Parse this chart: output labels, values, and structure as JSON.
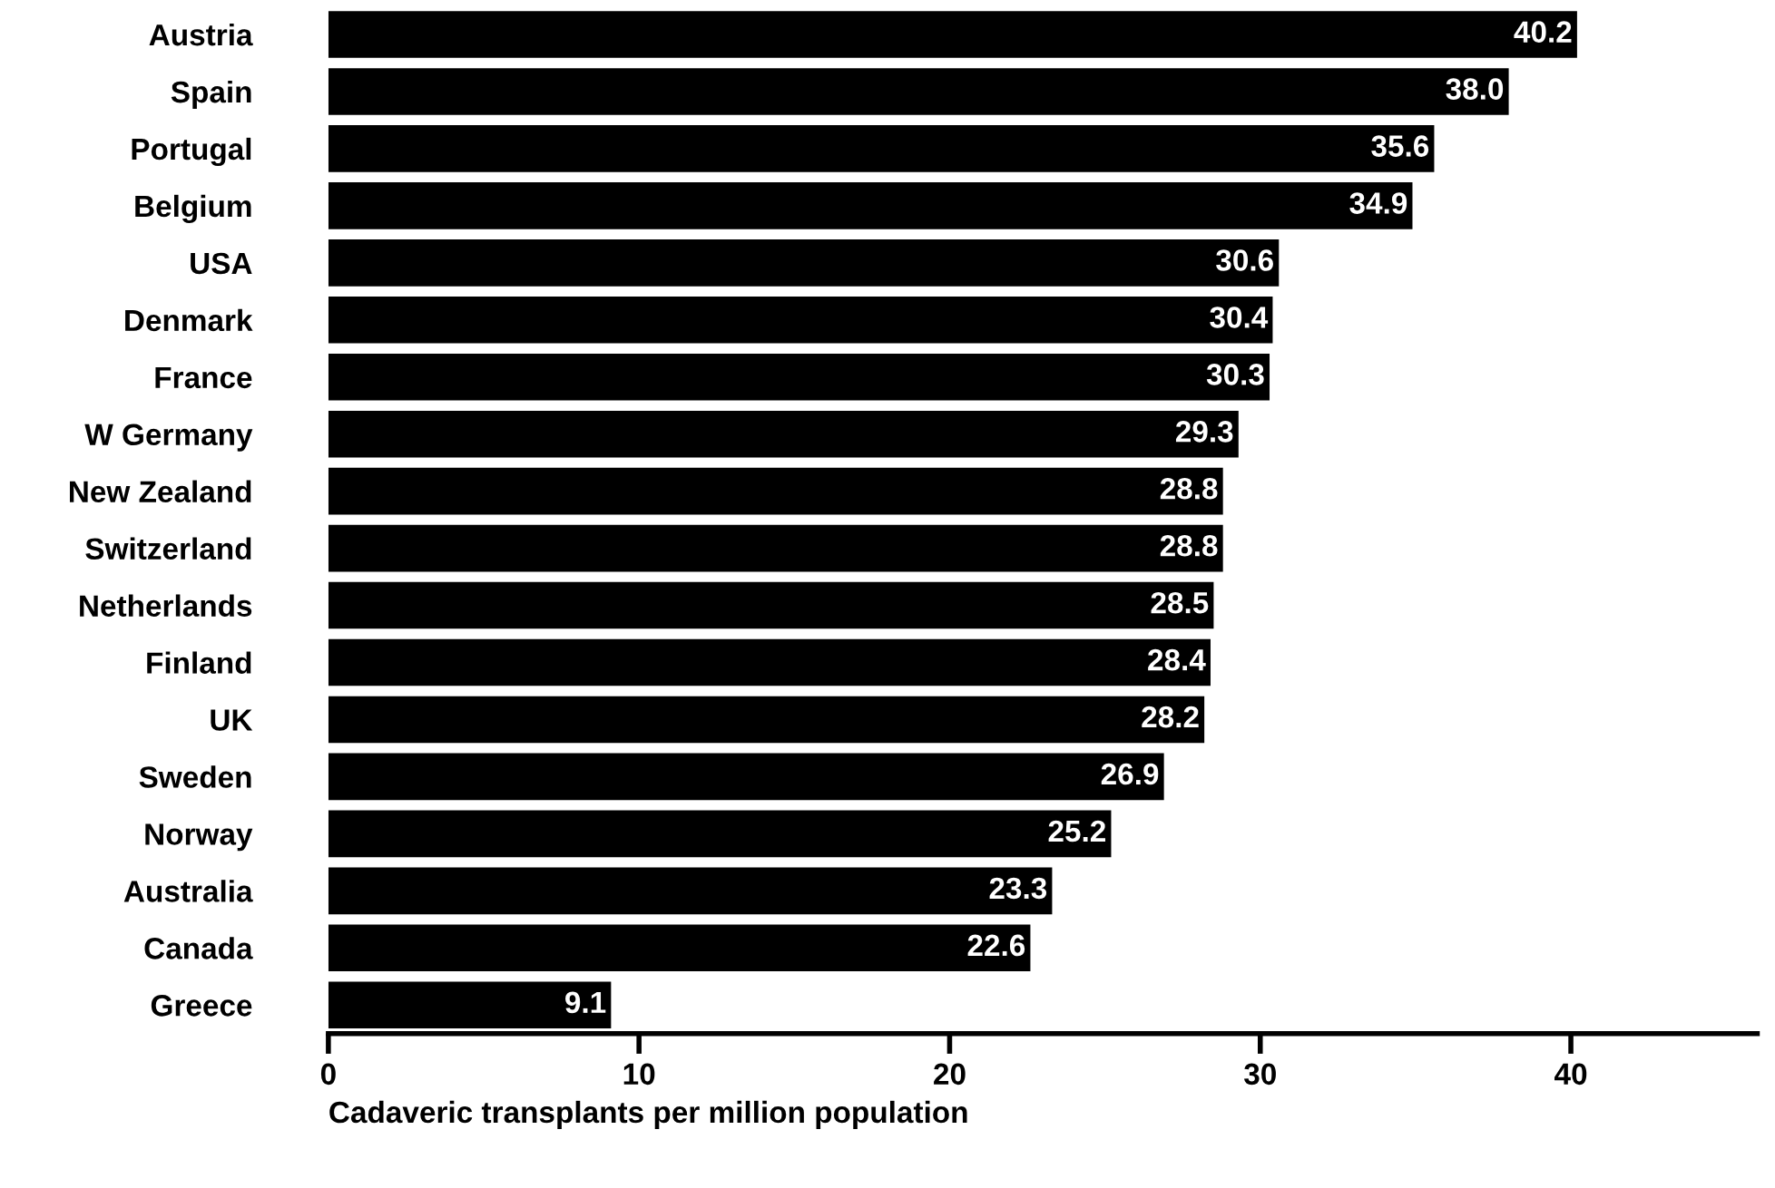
{
  "chart_data": {
    "type": "bar",
    "orientation": "horizontal",
    "xlabel": "Cadaveric transplants per million population",
    "categories": [
      "Austria",
      "Spain",
      "Portugal",
      "Belgium",
      "USA",
      "Denmark",
      "France",
      "W Germany",
      "New Zealand",
      "Switzerland",
      "Netherlands",
      "Finland",
      "UK",
      "Sweden",
      "Norway",
      "Australia",
      "Canada",
      "Greece"
    ],
    "values": [
      40.2,
      38.0,
      35.6,
      34.9,
      30.6,
      30.4,
      30.3,
      29.3,
      28.8,
      28.8,
      28.5,
      28.4,
      28.2,
      26.9,
      25.2,
      23.3,
      22.6,
      9.1
    ],
    "value_labels": [
      "40.2",
      "38.0",
      "35.6",
      "34.9",
      "30.6",
      "30.4",
      "30.3",
      "29.3",
      "28.8",
      "28.8",
      "28.5",
      "28.4",
      "28.2",
      "26.9",
      "25.2",
      "23.3",
      "22.6",
      "9.1"
    ],
    "color": "#000000",
    "xlim": [
      0,
      46
    ],
    "xticks": [
      0,
      10,
      20,
      30,
      40
    ],
    "grid": false,
    "legend": false
  }
}
